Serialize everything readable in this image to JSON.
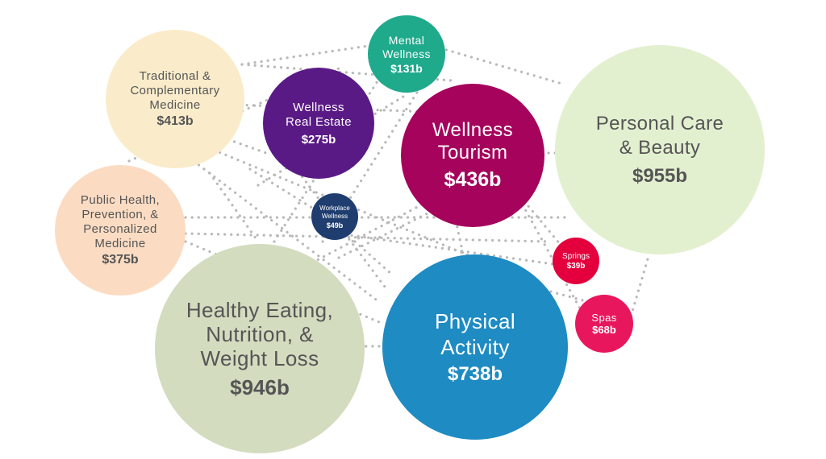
{
  "segments": {
    "traditional": {
      "label": "Traditional &\nComplementary\nMedicine",
      "value": "$413b",
      "color": "#faeccb",
      "text_color": "#555555"
    },
    "public_health": {
      "label": "Public Health,\nPrevention, &\nPersonalized\nMedicine",
      "value": "$375b",
      "color": "#fbdcc3",
      "text_color": "#555555"
    },
    "healthy_eating": {
      "label": "Healthy Eating,\nNutrition, &\nWeight Loss",
      "value": "$946b",
      "color": "#d3dcbf",
      "text_color": "#555555"
    },
    "real_estate": {
      "label": "Wellness\nReal Estate",
      "value": "$275b",
      "color": "#5a1a86",
      "text_color": "#ffffff"
    },
    "mental": {
      "label": "Mental\nWellness",
      "value": "$131b",
      "color": "#1faa8c",
      "text_color": "#ffffff"
    },
    "workplace": {
      "label": "Workplace\nWellness",
      "value": "$49b",
      "color": "#1f3d6e",
      "text_color": "#ffffff"
    },
    "tourism": {
      "label": "Wellness\nTourism",
      "value": "$436b",
      "color": "#a5035c",
      "text_color": "#ffffff"
    },
    "personal_care": {
      "label": "Personal Care\n& Beauty",
      "value": "$955b",
      "color": "#e3f0d0",
      "text_color": "#555555"
    },
    "springs": {
      "label": "Springs",
      "value": "$39b",
      "color": "#e3003c",
      "text_color": "#ffffff"
    },
    "spas": {
      "label": "Spas",
      "value": "$68b",
      "color": "#e8175d",
      "text_color": "#ffffff"
    },
    "physical": {
      "label": "Physical\nActivity",
      "value": "$738b",
      "color": "#1e8bc3",
      "text_color": "#ffffff"
    }
  }
}
